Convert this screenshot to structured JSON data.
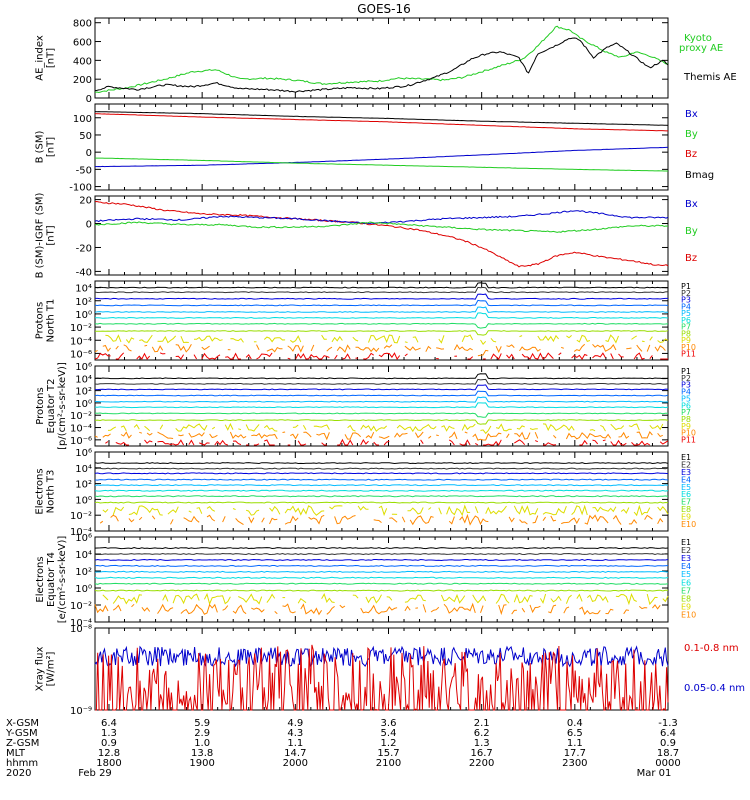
{
  "title": "GOES-16",
  "colors": {
    "black": "#000000",
    "green": "#22cc22",
    "blue": "#0000cc",
    "red": "#dd0000",
    "channels": [
      "#000000",
      "#333333",
      "#0000dd",
      "#0066ff",
      "#00bbff",
      "#00dddd",
      "#22dd66",
      "#99dd00",
      "#dddd00",
      "#ff8800",
      "#ee0000"
    ]
  },
  "time_axis": {
    "tick_labels": [
      "1800",
      "1900",
      "2000",
      "2100",
      "2200",
      "2300",
      "0000"
    ],
    "tick_hours": [
      18,
      19,
      20,
      21,
      22,
      23,
      24
    ],
    "start_hour": 17.85,
    "end_hour": 24.0
  },
  "footer": {
    "row_labels": [
      "X-GSM",
      "Y-GSM",
      "Z-GSM",
      "MLT",
      "hhmm",
      "2020"
    ],
    "x_gsm": [
      "6.4",
      "5.9",
      "4.9",
      "3.6",
      "2.1",
      "0.4",
      "-1.3"
    ],
    "y_gsm": [
      "1.3",
      "2.9",
      "4.3",
      "5.4",
      "6.2",
      "6.5",
      "6.4"
    ],
    "z_gsm": [
      "0.9",
      "1.0",
      "1.1",
      "1.2",
      "1.3",
      "1.1",
      "0.9"
    ],
    "mlt": [
      "12.8",
      "13.8",
      "14.7",
      "15.7",
      "16.7",
      "17.7",
      "18.7"
    ],
    "hhmm": [
      "1800",
      "1900",
      "2000",
      "2100",
      "2200",
      "2300",
      "0000"
    ],
    "date_start": "Feb 29",
    "date_end": "Mar 01"
  },
  "chart_data": [
    {
      "type": "line",
      "id": "ae",
      "ylabel": [
        "AE_index",
        "[nT]"
      ],
      "ylim": [
        0,
        850
      ],
      "yticks": [
        0,
        200,
        400,
        600,
        800
      ],
      "ytick_labels": [
        "0",
        "200",
        "400",
        "600",
        "800"
      ],
      "legend": [
        {
          "name": "Kyoto",
          "color": "#22cc22"
        },
        {
          "name": "proxy AE",
          "color": "#22cc22"
        },
        {
          "name": "Themis AE",
          "color": "#000000"
        }
      ],
      "series": [
        {
          "name": "Kyoto proxy AE",
          "color": "#22cc22",
          "x": [
            17.85,
            18.2,
            18.6,
            18.9,
            19.15,
            19.4,
            19.7,
            20.0,
            20.3,
            20.6,
            20.9,
            21.1,
            21.4,
            21.6,
            21.8,
            22.0,
            22.3,
            22.45,
            22.6,
            22.8,
            22.95,
            23.05,
            23.2,
            23.35,
            23.5,
            23.65,
            23.8,
            23.95,
            24.0
          ],
          "y": [
            60,
            110,
            200,
            280,
            300,
            200,
            210,
            190,
            150,
            170,
            180,
            210,
            200,
            190,
            220,
            280,
            370,
            420,
            550,
            760,
            720,
            640,
            560,
            480,
            430,
            490,
            450,
            380,
            360
          ]
        },
        {
          "name": "Themis AE",
          "color": "#000000",
          "x": [
            17.85,
            18.0,
            18.3,
            18.6,
            18.9,
            19.15,
            19.4,
            19.7,
            20.0,
            20.3,
            20.6,
            20.9,
            21.2,
            21.5,
            21.7,
            21.9,
            22.05,
            22.2,
            22.4,
            22.5,
            22.6,
            22.8,
            22.95,
            23.05,
            23.2,
            23.35,
            23.45,
            23.6,
            23.8,
            23.95,
            24.0
          ],
          "y": [
            80,
            120,
            90,
            140,
            120,
            160,
            100,
            90,
            70,
            90,
            110,
            100,
            130,
            220,
            300,
            420,
            470,
            490,
            430,
            260,
            470,
            560,
            640,
            620,
            430,
            540,
            580,
            470,
            320,
            400,
            350
          ]
        }
      ]
    },
    {
      "type": "line",
      "id": "bsm",
      "ylabel": [
        "B (SM)",
        "[nT]"
      ],
      "ylim": [
        -110,
        140
      ],
      "yticks": [
        -100,
        -50,
        0,
        50,
        100
      ],
      "ytick_labels": [
        "-100",
        "-50",
        "0",
        "50",
        "100"
      ],
      "legend": [
        {
          "name": "Bx",
          "color": "#0000cc"
        },
        {
          "name": "By",
          "color": "#22cc22"
        },
        {
          "name": "Bz",
          "color": "#dd0000"
        },
        {
          "name": "Bmag",
          "color": "#000000"
        }
      ],
      "series": [
        {
          "name": "Bmag",
          "color": "#000000",
          "x": [
            17.85,
            19.0,
            20.0,
            21.0,
            22.0,
            23.0,
            24.0
          ],
          "y": [
            118,
            112,
            104,
            98,
            90,
            84,
            78
          ]
        },
        {
          "name": "Bz",
          "color": "#dd0000",
          "x": [
            17.85,
            19.0,
            20.0,
            21.0,
            22.0,
            23.0,
            24.0
          ],
          "y": [
            112,
            102,
            95,
            88,
            78,
            68,
            62
          ]
        },
        {
          "name": "Bx",
          "color": "#0000cc",
          "x": [
            17.85,
            19.0,
            20.0,
            21.0,
            22.0,
            23.0,
            24.0
          ],
          "y": [
            -42,
            -38,
            -30,
            -20,
            -8,
            5,
            14
          ]
        },
        {
          "name": "By",
          "color": "#22cc22",
          "x": [
            17.85,
            19.0,
            20.0,
            21.0,
            22.0,
            23.0,
            24.0
          ],
          "y": [
            -17,
            -24,
            -32,
            -38,
            -44,
            -50,
            -55
          ]
        }
      ]
    },
    {
      "type": "line",
      "id": "bigrf",
      "ylabel": [
        "B (SM)-IGRF (SM)",
        "[nT]"
      ],
      "ylim": [
        -43,
        23
      ],
      "yticks": [
        -40,
        -20,
        0,
        20
      ],
      "ytick_labels": [
        "-40",
        "-20",
        "0",
        "20"
      ],
      "legend": [
        {
          "name": "Bx",
          "color": "#0000cc"
        },
        {
          "name": "By",
          "color": "#22cc22"
        },
        {
          "name": "Bz",
          "color": "#dd0000"
        }
      ],
      "series": [
        {
          "name": "Bz",
          "color": "#dd0000",
          "x": [
            17.85,
            18.2,
            18.6,
            19.0,
            19.4,
            19.8,
            20.2,
            20.6,
            21.0,
            21.3,
            21.6,
            21.8,
            22.0,
            22.2,
            22.4,
            22.6,
            22.8,
            23.0,
            23.3,
            23.6,
            23.9,
            24.0
          ],
          "y": [
            18,
            16,
            11,
            8,
            7,
            5,
            3,
            1,
            -2,
            -5,
            -10,
            -14,
            -20,
            -28,
            -36,
            -34,
            -27,
            -24,
            -28,
            -31,
            -35,
            -35
          ]
        },
        {
          "name": "Bx",
          "color": "#0000cc",
          "x": [
            17.85,
            18.3,
            18.8,
            19.2,
            19.6,
            20.0,
            20.4,
            20.8,
            21.2,
            21.6,
            22.0,
            22.4,
            22.8,
            23.0,
            23.3,
            23.6,
            24.0
          ],
          "y": [
            2,
            4,
            3,
            6,
            5,
            4,
            2,
            0,
            2,
            4,
            5,
            6,
            9,
            11,
            8,
            5,
            5
          ]
        },
        {
          "name": "By",
          "color": "#22cc22",
          "x": [
            17.85,
            18.3,
            18.8,
            19.2,
            19.6,
            20.0,
            20.4,
            20.8,
            21.2,
            21.6,
            22.0,
            22.4,
            22.8,
            23.2,
            23.6,
            24.0
          ],
          "y": [
            -1,
            1,
            -1,
            -1,
            -3,
            -3,
            -2,
            1,
            -1,
            -3,
            -5,
            -6,
            -7,
            -5,
            -2,
            -2
          ]
        }
      ]
    },
    {
      "type": "line",
      "id": "prot_n",
      "log": true,
      "ylabel": [
        "Protons",
        "North T1"
      ],
      "ylim_exp": [
        -7,
        5
      ],
      "yticks_exp": [
        -6,
        -4,
        -2,
        0,
        2,
        4
      ],
      "ytick_labels": [
        "10⁻⁶",
        "10⁻⁴",
        "10⁻²",
        "10⁰",
        "10²",
        "10⁴"
      ],
      "legend": [
        {
          "name": "P1"
        },
        {
          "name": "P2"
        },
        {
          "name": "P3"
        },
        {
          "name": "P4"
        },
        {
          "name": "P5"
        },
        {
          "name": "P6"
        },
        {
          "name": "P7"
        },
        {
          "name": "P8"
        },
        {
          "name": "P9"
        },
        {
          "name": "P10"
        },
        {
          "name": "P11"
        }
      ],
      "channel_levels_exp": [
        4.0,
        3.3,
        2.3,
        1.3,
        0.3,
        -0.6,
        -1.5,
        -2.6,
        -3.8,
        -5.2,
        -6.5
      ]
    },
    {
      "type": "line",
      "id": "prot_e",
      "log": true,
      "ylabel": [
        "Protons",
        "Equator T2",
        "[p/(cm²-s-sr-keV)]"
      ],
      "ylim_exp": [
        -7,
        6
      ],
      "yticks_exp": [
        -6,
        -4,
        -2,
        0,
        2,
        4,
        6
      ],
      "ytick_labels": [
        "10⁻⁶",
        "10⁻⁴",
        "10⁻²",
        "10⁰",
        "10²",
        "10⁴",
        "10⁶"
      ],
      "legend": [
        {
          "name": "P1"
        },
        {
          "name": "P2"
        },
        {
          "name": "P3"
        },
        {
          "name": "P4"
        },
        {
          "name": "P5"
        },
        {
          "name": "P6"
        },
        {
          "name": "P7"
        },
        {
          "name": "P8"
        },
        {
          "name": "P9"
        },
        {
          "name": "P10"
        },
        {
          "name": "P11"
        }
      ],
      "channel_levels_exp": [
        4.0,
        3.1,
        2.2,
        1.2,
        0.2,
        -0.7,
        -1.7,
        -2.8,
        -4.0,
        -5.3,
        -6.6
      ]
    },
    {
      "type": "line",
      "id": "elec_n",
      "log": true,
      "ylabel": [
        "Electrons",
        "North T3"
      ],
      "ylim_exp": [
        -4,
        6
      ],
      "yticks_exp": [
        -4,
        -2,
        0,
        2,
        4,
        6
      ],
      "ytick_labels": [
        "10⁻⁴",
        "10⁻²",
        "10⁰",
        "10²",
        "10⁴",
        "10⁶"
      ],
      "legend": [
        {
          "name": "E1"
        },
        {
          "name": "E2"
        },
        {
          "name": "E3"
        },
        {
          "name": "E4"
        },
        {
          "name": "E5"
        },
        {
          "name": "E6"
        },
        {
          "name": "E7"
        },
        {
          "name": "E8"
        },
        {
          "name": "E9"
        },
        {
          "name": "E10"
        }
      ],
      "channel_levels_exp": [
        4.6,
        3.9,
        3.3,
        2.5,
        1.8,
        1.1,
        0.4,
        -0.4,
        -1.4,
        -2.6
      ]
    },
    {
      "type": "line",
      "id": "elec_e",
      "log": true,
      "ylabel": [
        "Electrons",
        "Equator T4",
        "[e/(cm²-s-sr-keV)]"
      ],
      "ylim_exp": [
        -4,
        6
      ],
      "yticks_exp": [
        -4,
        -2,
        0,
        2,
        4,
        6
      ],
      "ytick_labels": [
        "10⁻⁴",
        "10⁻²",
        "10⁰",
        "10²",
        "10⁴",
        "10⁶"
      ],
      "legend": [
        {
          "name": "E1"
        },
        {
          "name": "E2"
        },
        {
          "name": "E3"
        },
        {
          "name": "E4"
        },
        {
          "name": "E5"
        },
        {
          "name": "E6"
        },
        {
          "name": "E7"
        },
        {
          "name": "E8"
        },
        {
          "name": "E9"
        },
        {
          "name": "E10"
        }
      ],
      "channel_levels_exp": [
        4.7,
        4.0,
        3.3,
        2.6,
        1.9,
        1.2,
        0.5,
        -0.3,
        -1.3,
        -2.5
      ]
    },
    {
      "type": "line",
      "id": "xray",
      "log": true,
      "ylabel": [
        "Xray flux",
        "[W/m²]"
      ],
      "ylim_exp": [
        -9,
        -8
      ],
      "yticks_exp": [
        -9,
        -8
      ],
      "ytick_labels": [
        "10⁻⁹",
        "10⁻⁸"
      ],
      "legend": [
        {
          "name": "0.1-0.8 nm",
          "color": "#dd0000"
        },
        {
          "name": "0.05-0.4 nm",
          "color": "#0000cc"
        }
      ],
      "series": [
        {
          "name": "0.05-0.4 nm",
          "color": "#0000cc",
          "level_exp": -8.35
        },
        {
          "name": "0.1-0.8 nm",
          "color": "#dd0000",
          "level_exp": -8.75
        }
      ]
    }
  ]
}
